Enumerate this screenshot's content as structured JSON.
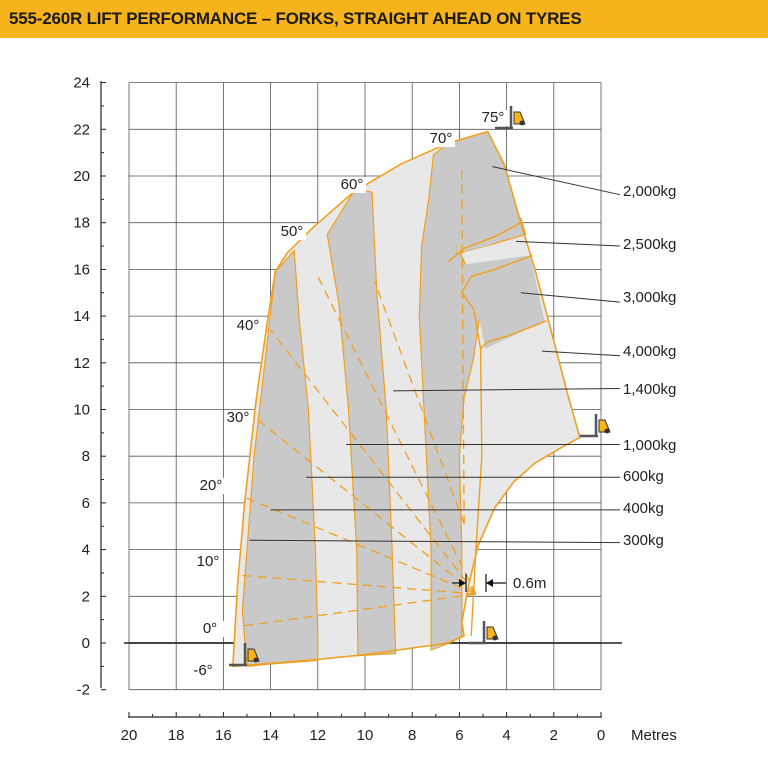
{
  "title": "555-260R LIFT PERFORMANCE – FORKS, STRAIGHT AHEAD ON TYRES",
  "colors": {
    "brand": "#f6b31b",
    "envelope": "#f0a020",
    "zone_dark": "#c9c9c9",
    "zone_light": "#e8e8e8"
  },
  "chart_data": {
    "type": "load chart",
    "title": "555-260R LIFT PERFORMANCE – FORKS, STRAIGHT AHEAD ON TYRES",
    "xlabel": "Metres",
    "x_reversed": true,
    "xlim": [
      0,
      20
    ],
    "ylim": [
      -2,
      24
    ],
    "x_ticks": [
      20,
      18,
      16,
      14,
      12,
      10,
      8,
      6,
      4,
      2,
      0
    ],
    "y_ticks": [
      24,
      22,
      20,
      18,
      16,
      14,
      12,
      10,
      8,
      6,
      4,
      2,
      0,
      -2
    ],
    "grid": true,
    "boom_angles": [
      "75°",
      "70°",
      "60°",
      "50°",
      "40°",
      "30°",
      "20°",
      "10°",
      "0°",
      "-6°"
    ],
    "clearance_label": "0.6m",
    "load_zones": [
      {
        "load": "2,000kg"
      },
      {
        "load": "2,500kg"
      },
      {
        "load": "3,000kg"
      },
      {
        "load": "4,000kg"
      },
      {
        "load": "1,400kg"
      },
      {
        "load": "1,000kg"
      },
      {
        "load": "600kg"
      },
      {
        "load": "400kg"
      },
      {
        "load": "300kg"
      }
    ]
  }
}
